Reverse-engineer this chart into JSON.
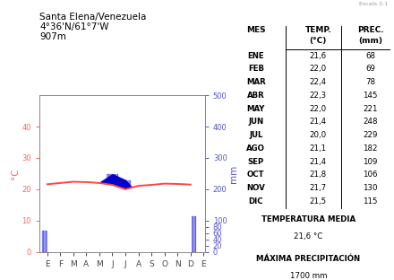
{
  "title_line1": "Santa Elena/Venezuela",
  "title_line2": "4°36'N/61°7'W",
  "title_line3": "907m",
  "months_labels": [
    "E",
    "F",
    "M",
    "A",
    "M",
    "J",
    "J",
    "A",
    "S",
    "O",
    "N",
    "D",
    "E"
  ],
  "months": [
    "ENE",
    "FEB",
    "MAR",
    "ABR",
    "MAY",
    "JUN",
    "JUL",
    "AGO",
    "SEP",
    "OCT",
    "NOV",
    "DIC"
  ],
  "temp": [
    21.6,
    22.0,
    22.4,
    22.3,
    22.0,
    21.4,
    20.0,
    21.1,
    21.4,
    21.8,
    21.7,
    21.5
  ],
  "prec": [
    68,
    69,
    78,
    145,
    221,
    248,
    229,
    182,
    109,
    106,
    130,
    115
  ],
  "temp_media": "21,6 °C",
  "max_prec": "1700 mm",
  "ylabel_left": "°C",
  "ylabel_right": "mm",
  "ylim_left": [
    0,
    50
  ],
  "ylim_right": [
    0,
    500
  ],
  "yticks_left": [
    0,
    10,
    20,
    30,
    40
  ],
  "yticks_right": [
    0,
    20,
    40,
    60,
    80,
    100,
    200,
    300,
    400,
    500
  ],
  "color_prec_bar": "#6666ff",
  "color_prec_fill": "#0000cc",
  "color_temp": "#ff4444",
  "color_temp_label": "#ff6666",
  "scale_note": "Escala 2:1"
}
